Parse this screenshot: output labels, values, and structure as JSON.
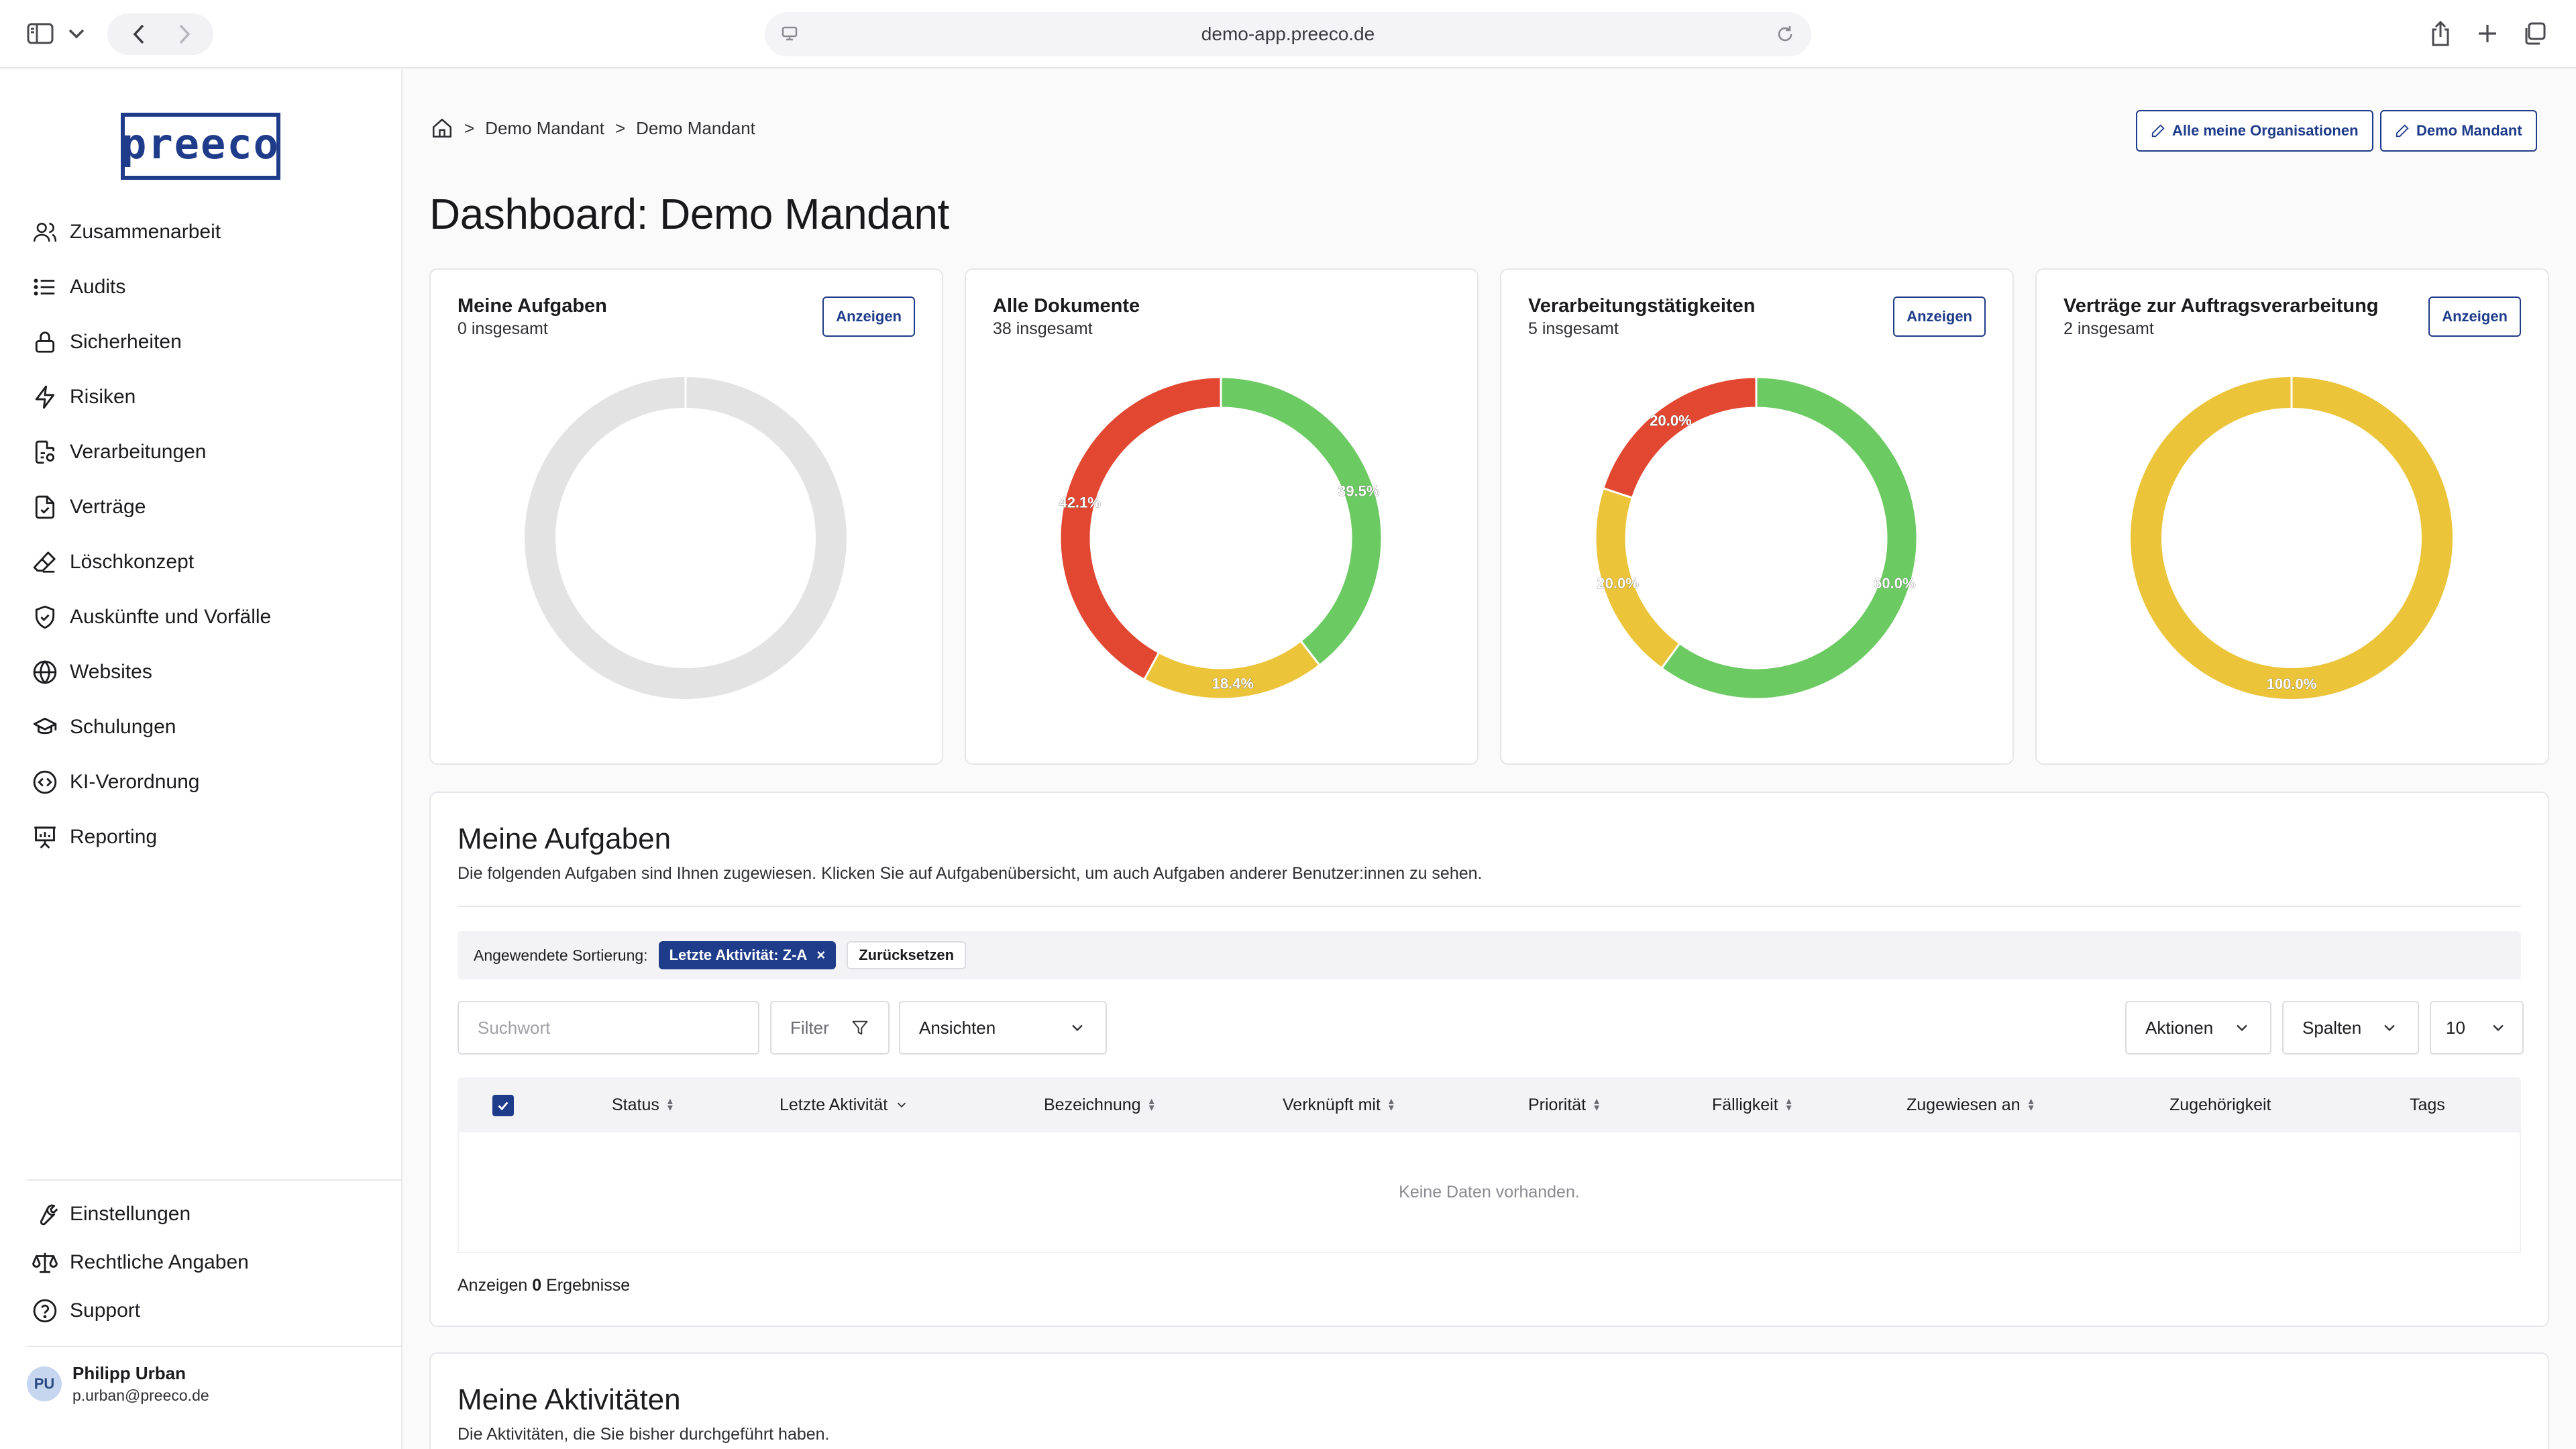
{
  "browser": {
    "url": "demo-app.preeco.de"
  },
  "logo": {
    "text": "preeco"
  },
  "sidebar": {
    "items": [
      {
        "label": "Zusammenarbeit",
        "icon": "users-icon"
      },
      {
        "label": "Audits",
        "icon": "list-icon"
      },
      {
        "label": "Sicherheiten",
        "icon": "lock-icon"
      },
      {
        "label": "Risiken",
        "icon": "lightning-icon"
      },
      {
        "label": "Verarbeitungen",
        "icon": "document-gear-icon"
      },
      {
        "label": "Verträge",
        "icon": "document-check-icon"
      },
      {
        "label": "Löschkonzept",
        "icon": "eraser-icon"
      },
      {
        "label": "Auskünfte und Vorfälle",
        "icon": "shield-check-icon"
      },
      {
        "label": "Websites",
        "icon": "globe-icon"
      },
      {
        "label": "Schulungen",
        "icon": "graduation-cap-icon"
      },
      {
        "label": "KI-Verordnung",
        "icon": "code-circle-icon"
      },
      {
        "label": "Reporting",
        "icon": "presentation-chart-icon"
      }
    ],
    "bottom_items": [
      {
        "label": "Einstellungen",
        "icon": "wrench-icon"
      },
      {
        "label": "Rechtliche Angaben",
        "icon": "scale-icon"
      },
      {
        "label": "Support",
        "icon": "question-circle-icon"
      }
    ],
    "user": {
      "initials": "PU",
      "name": "Philipp Urban",
      "email": "p.urban@preeco.de"
    }
  },
  "header": {
    "breadcrumb": [
      "Demo Mandant",
      "Demo Mandant"
    ],
    "btn_orgs": "Alle meine Organisationen",
    "btn_mandant": "Demo Mandant",
    "title": "Dashboard: Demo Mandant"
  },
  "cards": [
    {
      "title": "Meine Aufgaben",
      "subtitle": "0 insgesamt",
      "button": "Anzeigen"
    },
    {
      "title": "Alle Dokumente",
      "subtitle": "38 insgesamt"
    },
    {
      "title": "Verarbeitungstätigkeiten",
      "subtitle": "5 insgesamt",
      "button": "Anzeigen"
    },
    {
      "title": "Verträge zur Auftragsverarbeitung",
      "subtitle": "2 insgesamt",
      "button": "Anzeigen"
    }
  ],
  "colors": {
    "green": "#6cca62",
    "yellow": "#ebc43a",
    "red": "#e24731",
    "gray": "#e3e3e3",
    "brand": "#1f3c8a"
  },
  "chart_data": [
    {
      "type": "pie",
      "title": "Meine Aufgaben",
      "slices": [],
      "empty": true
    },
    {
      "type": "pie",
      "title": "Alle Dokumente",
      "slices": [
        {
          "value": 39.5,
          "label": "39.5%",
          "color": "#6cca62"
        },
        {
          "value": 18.4,
          "label": "18.4%",
          "color": "#ebc43a"
        },
        {
          "value": 42.1,
          "label": "42.1%",
          "color": "#e24731"
        }
      ]
    },
    {
      "type": "pie",
      "title": "Verarbeitungstätigkeiten",
      "slices": [
        {
          "value": 60.0,
          "label": "60.0%",
          "color": "#6cca62"
        },
        {
          "value": 20.0,
          "label": "20.0%",
          "color": "#ebc43a"
        },
        {
          "value": 20.0,
          "label": "20.0%",
          "color": "#e24731"
        }
      ]
    },
    {
      "type": "pie",
      "title": "Verträge zur Auftragsverarbeitung",
      "slices": [
        {
          "value": 100.0,
          "label": "100.0%",
          "color": "#ebc43a"
        }
      ]
    }
  ],
  "tasks": {
    "title": "Meine Aufgaben",
    "description": "Die folgenden Aufgaben sind Ihnen zugewiesen. Klicken Sie auf Aufgabenübersicht, um auch Aufgaben anderer Benutzer:innen zu sehen.",
    "sort_label": "Angewendete Sortierung:",
    "sort_chip": "Letzte Aktivität: Z-A",
    "reset": "Zurücksetzen",
    "search_placeholder": "Suchwort",
    "filter": "Filter",
    "views": "Ansichten",
    "actions": "Aktionen",
    "columns_btn": "Spalten",
    "page_size": "10",
    "columns": [
      "Status",
      "Letzte Aktivität",
      "Bezeichnung",
      "Verknüpft mit",
      "Priorität",
      "Fälligkeit",
      "Zugewiesen an",
      "Zugehörigkeit",
      "Tags"
    ],
    "empty": "Keine Daten vorhanden.",
    "results_prefix": "Anzeigen",
    "results_count": "0",
    "results_suffix": "Ergebnisse"
  },
  "activities": {
    "title": "Meine Aktivitäten",
    "description": "Die Aktivitäten, die Sie bisher durchgeführt haben."
  }
}
